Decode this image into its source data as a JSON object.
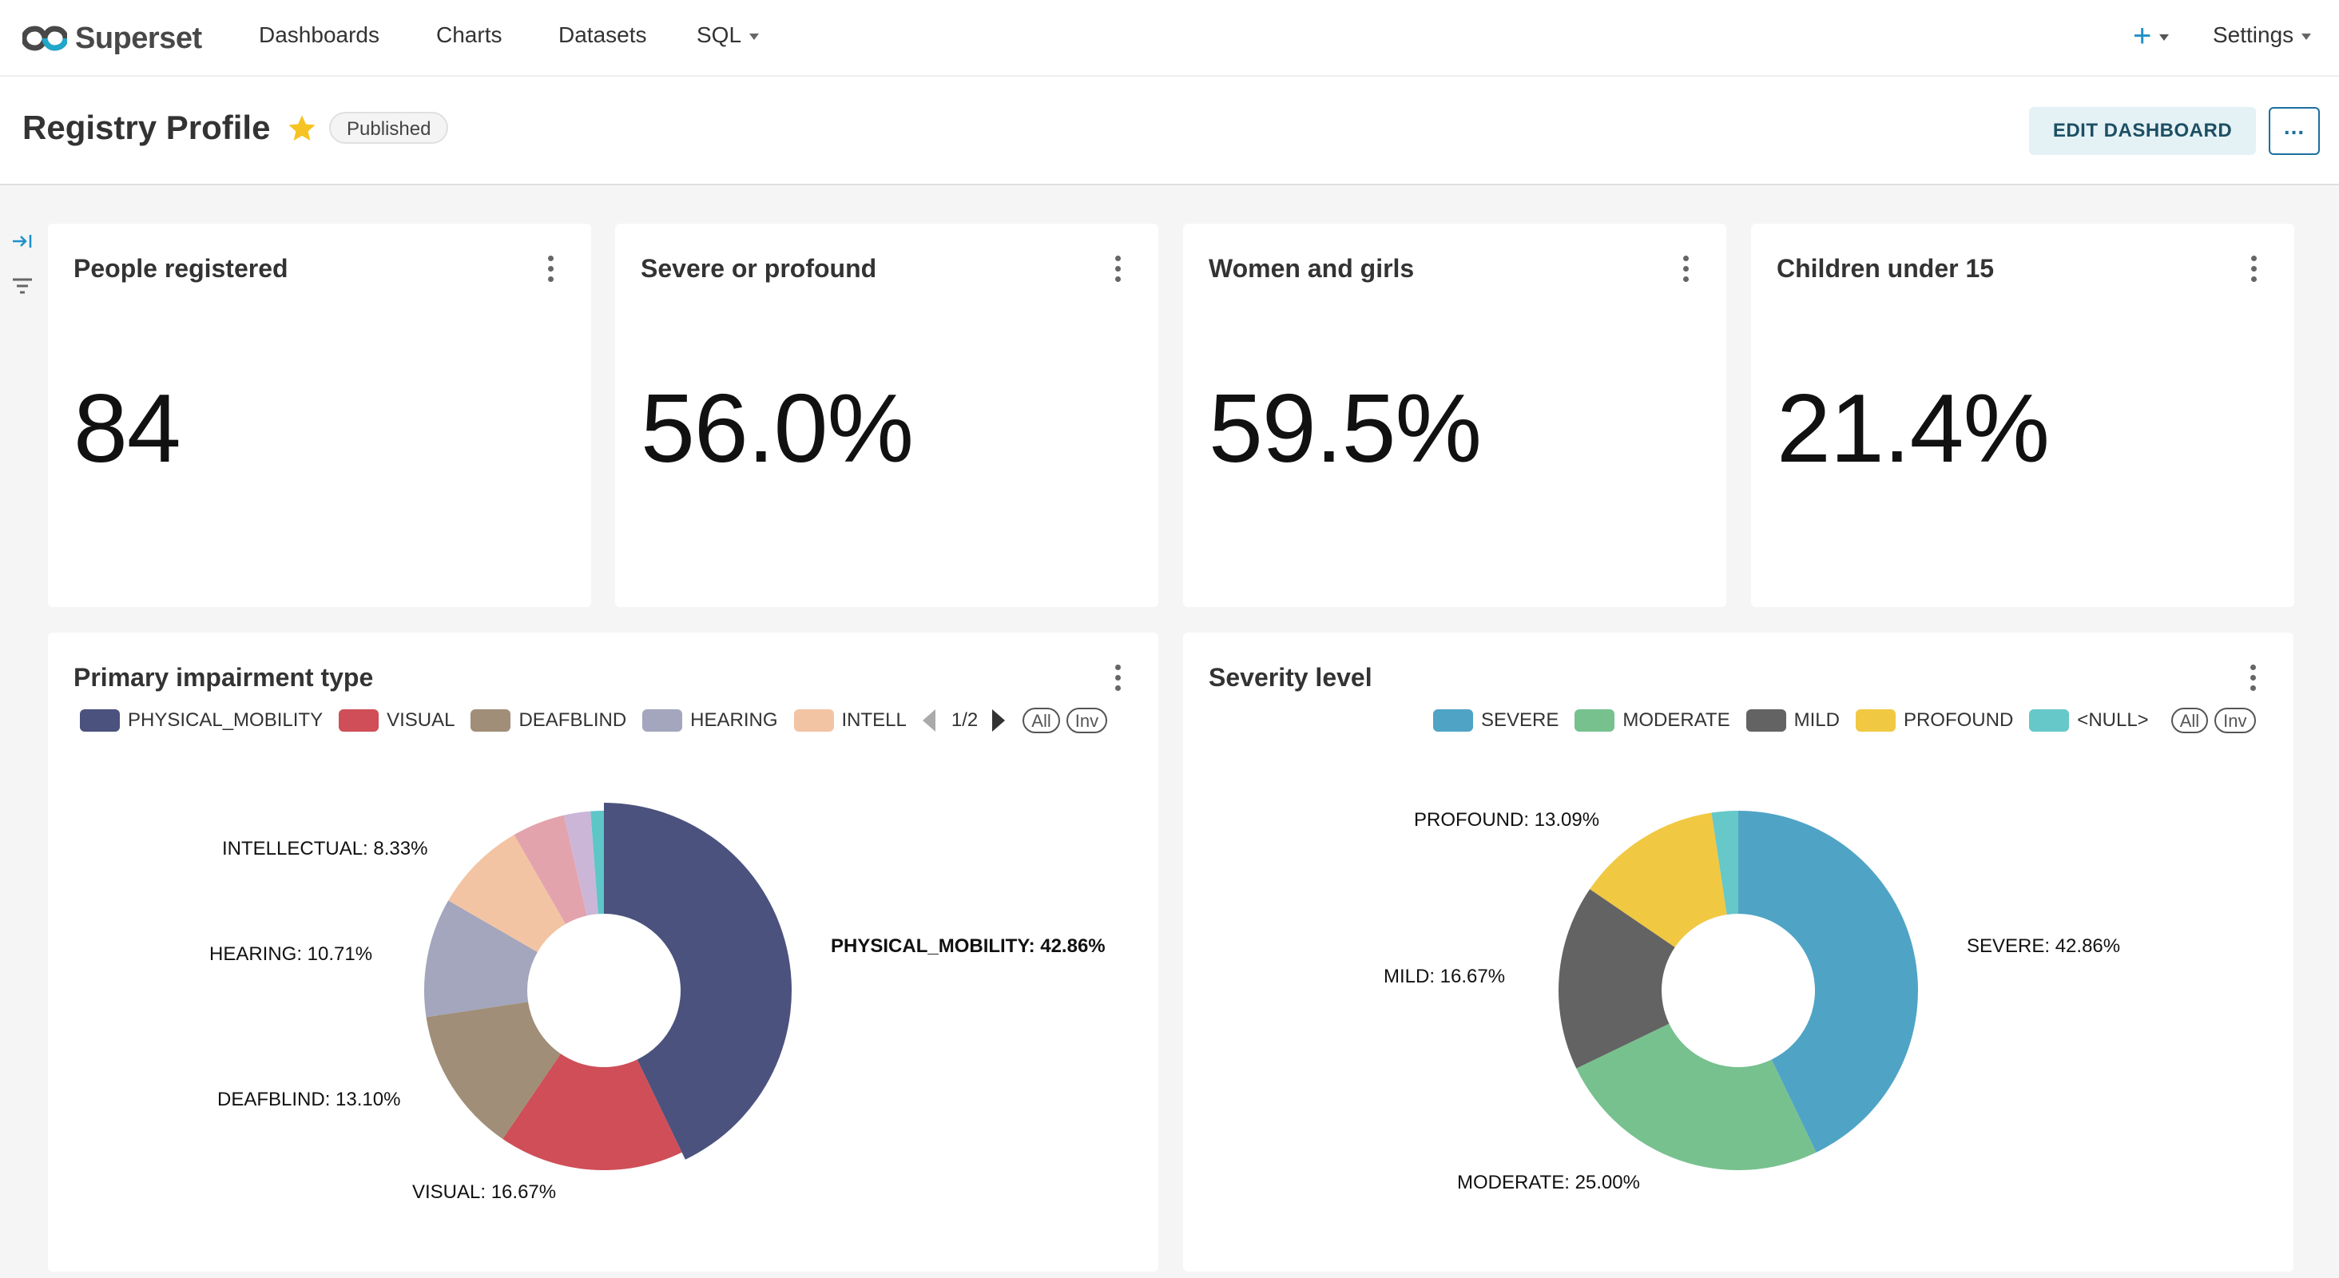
{
  "nav": {
    "brand": "Superset",
    "items": [
      "Dashboards",
      "Charts",
      "Datasets",
      "SQL"
    ],
    "settings_label": "Settings",
    "plus_label": "+"
  },
  "header": {
    "title": "Registry Profile",
    "badge": "Published",
    "edit_label": "EDIT DASHBOARD",
    "more_label": "..."
  },
  "kpis": [
    {
      "title": "People registered",
      "value": "84"
    },
    {
      "title": "Severe or profound",
      "value": "56.0%"
    },
    {
      "title": "Women and girls",
      "value": "59.5%"
    },
    {
      "title": "Children under 15",
      "value": "21.4%"
    }
  ],
  "colors": {
    "star": "#f5c322",
    "accent": "#1f8fc7"
  },
  "legend_controls": {
    "page": "1/2",
    "all": "All",
    "inv": "Inv"
  },
  "chart_data": [
    {
      "type": "pie",
      "title": "Primary impairment type",
      "legend": [
        {
          "label": "PHYSICAL_MOBILITY",
          "color": "#4b527e"
        },
        {
          "label": "VISUAL",
          "color": "#cf4e57"
        },
        {
          "label": "DEAFBLIND",
          "color": "#a08e78"
        },
        {
          "label": "HEARING",
          "color": "#a3a6bc"
        },
        {
          "label": "INTELL",
          "color": "#f3c4a4"
        }
      ],
      "slices": [
        {
          "name": "PHYSICAL_MOBILITY",
          "value": 42.86,
          "color": "#4b527e",
          "label": "PHYSICAL_MOBILITY: 42.86%",
          "bold": true
        },
        {
          "name": "VISUAL",
          "value": 16.67,
          "color": "#cf4e57",
          "label": "VISUAL: 16.67%"
        },
        {
          "name": "DEAFBLIND",
          "value": 13.1,
          "color": "#a08e78",
          "label": "DEAFBLIND: 13.10%"
        },
        {
          "name": "HEARING",
          "value": 10.71,
          "color": "#a3a6bc",
          "label": "HEARING: 10.71%"
        },
        {
          "name": "INTELLECTUAL",
          "value": 8.33,
          "color": "#f3c4a4",
          "label": "INTELLECTUAL: 8.33%"
        },
        {
          "name": "",
          "value": 4.76,
          "color": "#e3a3ad",
          "label": ""
        },
        {
          "name": "",
          "value": 2.38,
          "color": "#cbb6d8",
          "label": ""
        },
        {
          "name": "",
          "value": 1.19,
          "color": "#5ec6c6",
          "label": ""
        }
      ]
    },
    {
      "type": "pie",
      "title": "Severity level",
      "legend": [
        {
          "label": "SEVERE",
          "color": "#4fa4c6"
        },
        {
          "label": "MODERATE",
          "color": "#77c18f"
        },
        {
          "label": "MILD",
          "color": "#636363"
        },
        {
          "label": "PROFOUND",
          "color": "#f1c842"
        },
        {
          "label": "<NULL>",
          "color": "#66c8c8"
        }
      ],
      "slices": [
        {
          "name": "SEVERE",
          "value": 42.86,
          "color": "#4fa4c6",
          "label": "SEVERE: 42.86%"
        },
        {
          "name": "MODERATE",
          "value": 25.0,
          "color": "#77c18f",
          "label": "MODERATE: 25.00%"
        },
        {
          "name": "MILD",
          "value": 16.67,
          "color": "#636363",
          "label": "MILD: 16.67%"
        },
        {
          "name": "PROFOUND",
          "value": 13.09,
          "color": "#f1c842",
          "label": "PROFOUND: 13.09%"
        },
        {
          "name": "<NULL>",
          "value": 2.38,
          "color": "#66c8c8",
          "label": ""
        }
      ]
    }
  ]
}
